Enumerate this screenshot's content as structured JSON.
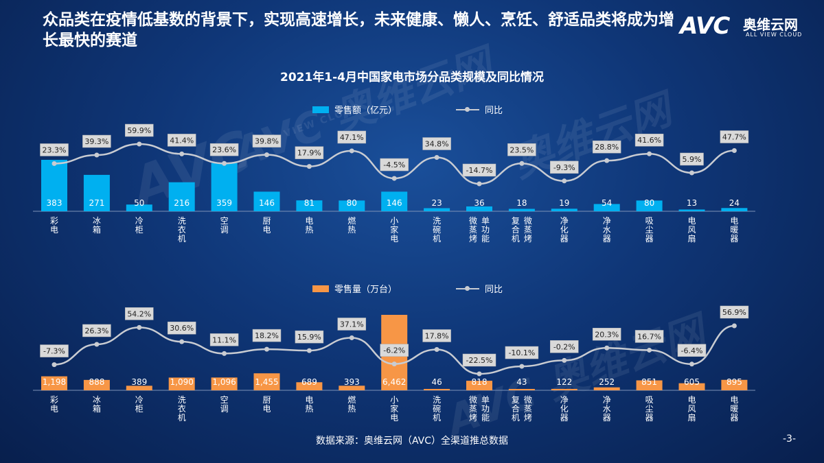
{
  "headline": "众品类在疫情低基数的背景下，实现高速增长，未来健康、懒人、烹饪、舒适品类将成为增长最快的赛道",
  "logo": {
    "mark": "AVC",
    "name_cn": "奥维云网",
    "name_en": "ALL VIEW CLOUD"
  },
  "watermark": {
    "mark": "AVC",
    "text": "奥维云网",
    "sub": "ALL VIEW CLOUD"
  },
  "source": "数据来源：奥维云网（AVC）全渠道推总数据",
  "page_number": "-3-",
  "colors": {
    "bar1": "#00b0f0",
    "bar2": "#f79646",
    "line": "#c9ccd2",
    "label_bg": "#d9d9d9"
  },
  "chart_data": [
    {
      "type": "bar",
      "title": "2021年1-4月中国家电市场分品类规模及同比情况",
      "categories": [
        "彩电",
        "冰箱",
        "冷柜",
        "洗衣机",
        "空调",
        "厨电",
        "电热",
        "燃热",
        "小家电",
        "洗碗机",
        "微蒸烤|单功能",
        "复合机|微蒸烤",
        "净化器",
        "净水器",
        "吸尘器",
        "电风扇",
        "电暖器"
      ],
      "series": [
        {
          "name": "零售额（亿元）",
          "kind": "bar",
          "values": [
            383,
            271,
            50,
            216,
            359,
            146,
            81,
            80,
            146,
            23,
            36,
            18,
            19,
            54,
            80,
            13,
            24
          ],
          "labels": [
            "383",
            "271",
            "50",
            "216",
            "359",
            "146",
            "81",
            "80",
            "146",
            "23",
            "36",
            "18",
            "19",
            "54",
            "80",
            "13",
            "24"
          ]
        },
        {
          "name": "同比",
          "kind": "line",
          "values": [
            23.3,
            39.3,
            59.9,
            41.4,
            23.6,
            39.8,
            17.9,
            47.1,
            -4.5,
            34.8,
            -14.7,
            23.5,
            -9.3,
            28.8,
            41.6,
            5.9,
            47.7
          ],
          "labels": [
            "23.3%",
            "39.3%",
            "59.9%",
            "41.4%",
            "23.6%",
            "39.8%",
            "17.9%",
            "47.1%",
            "-4.5%",
            "34.8%",
            "-14.7%",
            "23.5%",
            "-9.3%",
            "28.8%",
            "41.6%",
            "5.9%",
            "47.7%"
          ]
        }
      ]
    },
    {
      "type": "bar",
      "categories": [
        "彩电",
        "冰箱",
        "冷柜",
        "洗衣机",
        "空调",
        "厨电",
        "电热",
        "燃热",
        "小家电",
        "洗碗机",
        "微蒸烤|单功能",
        "复合机|微蒸烤",
        "净化器",
        "净水器",
        "吸尘器",
        "电风扇",
        "电暖器"
      ],
      "series": [
        {
          "name": "零售量（万台）",
          "kind": "bar",
          "values": [
            1198,
            888,
            389,
            1090,
            1096,
            1455,
            689,
            393,
            6462,
            46,
            818,
            43,
            122,
            252,
            851,
            605,
            895
          ],
          "labels": [
            "1,198",
            "888",
            "389",
            "1,090",
            "1,096",
            "1,455",
            "689",
            "393",
            "6,462",
            "46",
            "818",
            "43",
            "122",
            "252",
            "851",
            "605",
            "895"
          ]
        },
        {
          "name": "同比",
          "kind": "line",
          "values": [
            -7.3,
            26.3,
            54.2,
            30.6,
            11.1,
            18.2,
            15.9,
            37.1,
            -6.2,
            17.8,
            -22.5,
            -10.1,
            -0.2,
            20.3,
            16.7,
            -6.4,
            56.9
          ],
          "labels": [
            "-7.3%",
            "26.3%",
            "54.2%",
            "30.6%",
            "11.1%",
            "18.2%",
            "15.9%",
            "37.1%",
            "-6.2%",
            "17.8%",
            "-22.5%",
            "-10.1%",
            "-0.2%",
            "20.3%",
            "16.7%",
            "-6.4%",
            "56.9%"
          ]
        }
      ]
    }
  ]
}
